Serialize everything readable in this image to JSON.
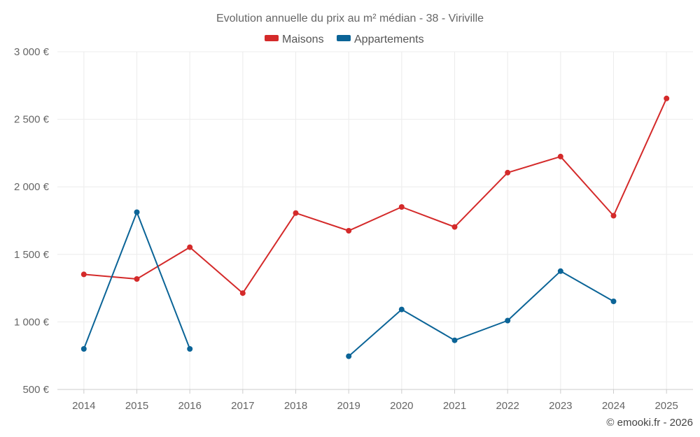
{
  "chart_data": {
    "type": "line",
    "title": "Evolution annuelle du prix au m² médian - 38 - Viriville",
    "categories": [
      "2014",
      "2015",
      "2016",
      "2017",
      "2018",
      "2019",
      "2020",
      "2021",
      "2022",
      "2023",
      "2024",
      "2025"
    ],
    "series": [
      {
        "name": "Maisons",
        "color": "#d42a2a",
        "values": [
          1352,
          1318,
          1553,
          1213,
          1806,
          1675,
          1851,
          1703,
          2105,
          2224,
          1786,
          2654
        ]
      },
      {
        "name": "Appartements",
        "color": "#0b6497",
        "values": [
          800,
          1812,
          800,
          null,
          null,
          746,
          1092,
          864,
          1010,
          1376,
          1152,
          null
        ]
      }
    ],
    "ylim": [
      500,
      3000
    ],
    "yticks": [
      500,
      1000,
      1500,
      2000,
      2500,
      3000
    ],
    "ytick_labels": [
      "500 €",
      "1 000 €",
      "1 500 €",
      "2 000 €",
      "2 500 €",
      "3 000 €"
    ],
    "grid": true,
    "legend_position": "top-center",
    "credit": "© emooki.fr - 2026"
  }
}
